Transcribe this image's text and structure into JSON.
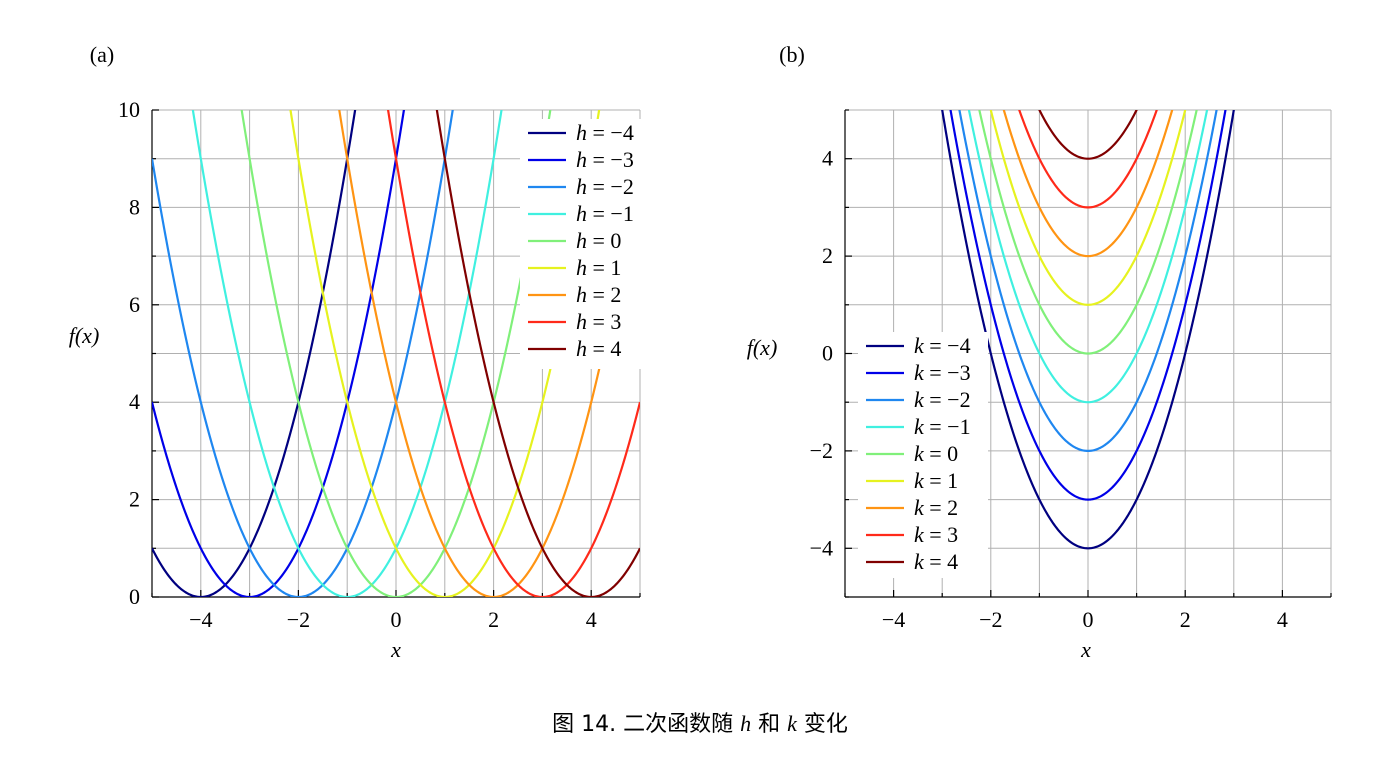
{
  "caption": {
    "prefix": "图 14. 二次函数随 ",
    "var1": "h",
    "middle": " 和 ",
    "var2": "k",
    "suffix": " 变化"
  },
  "chart_data": [
    {
      "type": "line",
      "panel_label": "(a)",
      "formula": "f(x) = (x - h)^2",
      "xlabel": "x",
      "ylabel": "f(x)",
      "xlim": [
        -5,
        5
      ],
      "ylim": [
        0,
        10
      ],
      "xticks": [
        -4,
        -2,
        0,
        2,
        4
      ],
      "yticks": [
        0,
        2,
        4,
        6,
        8,
        10
      ],
      "xtick_labels": [
        "−4",
        "−2",
        "0",
        "2",
        "4"
      ],
      "ytick_labels": [
        "0",
        "2",
        "4",
        "6",
        "8",
        "10"
      ],
      "grid": true,
      "legend_position": "top-right",
      "legend_var": "h",
      "series": [
        {
          "name": "h = −4",
          "param": -4,
          "color": "#000080"
        },
        {
          "name": "h = −3",
          "param": -3,
          "color": "#0000e8"
        },
        {
          "name": "h = −2",
          "param": -2,
          "color": "#1f87f0"
        },
        {
          "name": "h = −1",
          "param": -1,
          "color": "#40f0e0"
        },
        {
          "name": "h = 0",
          "param": 0,
          "color": "#80f07a"
        },
        {
          "name": "h = 1",
          "param": 1,
          "color": "#e6f21f"
        },
        {
          "name": "h = 2",
          "param": 2,
          "color": "#ff9413"
        },
        {
          "name": "h = 3",
          "param": 3,
          "color": "#ff2a1a"
        },
        {
          "name": "h = 4",
          "param": 4,
          "color": "#800000"
        }
      ]
    },
    {
      "type": "line",
      "panel_label": "(b)",
      "formula": "f(x) = x^2 + k",
      "xlabel": "x",
      "ylabel": "f(x)",
      "xlim": [
        -5,
        5
      ],
      "ylim": [
        -5,
        5
      ],
      "xticks": [
        -4,
        -2,
        0,
        2,
        4
      ],
      "yticks": [
        -4,
        -2,
        0,
        2,
        4
      ],
      "xtick_labels": [
        "−4",
        "−2",
        "0",
        "2",
        "4"
      ],
      "ytick_labels": [
        "−4",
        "−2",
        "0",
        "2",
        "4"
      ],
      "grid": true,
      "legend_position": "bottom-left",
      "legend_var": "k",
      "series": [
        {
          "name": "k = −4",
          "param": -4,
          "color": "#000080"
        },
        {
          "name": "k = −3",
          "param": -3,
          "color": "#0000e8"
        },
        {
          "name": "k = −2",
          "param": -2,
          "color": "#1f87f0"
        },
        {
          "name": "k = −1",
          "param": -1,
          "color": "#40f0e0"
        },
        {
          "name": "k = 0",
          "param": 0,
          "color": "#80f07a"
        },
        {
          "name": "k = 1",
          "param": 1,
          "color": "#e6f21f"
        },
        {
          "name": "k = 2",
          "param": 2,
          "color": "#ff9413"
        },
        {
          "name": "k = 3",
          "param": 3,
          "color": "#ff2a1a"
        },
        {
          "name": "k = 4",
          "param": 4,
          "color": "#800000"
        }
      ]
    }
  ]
}
